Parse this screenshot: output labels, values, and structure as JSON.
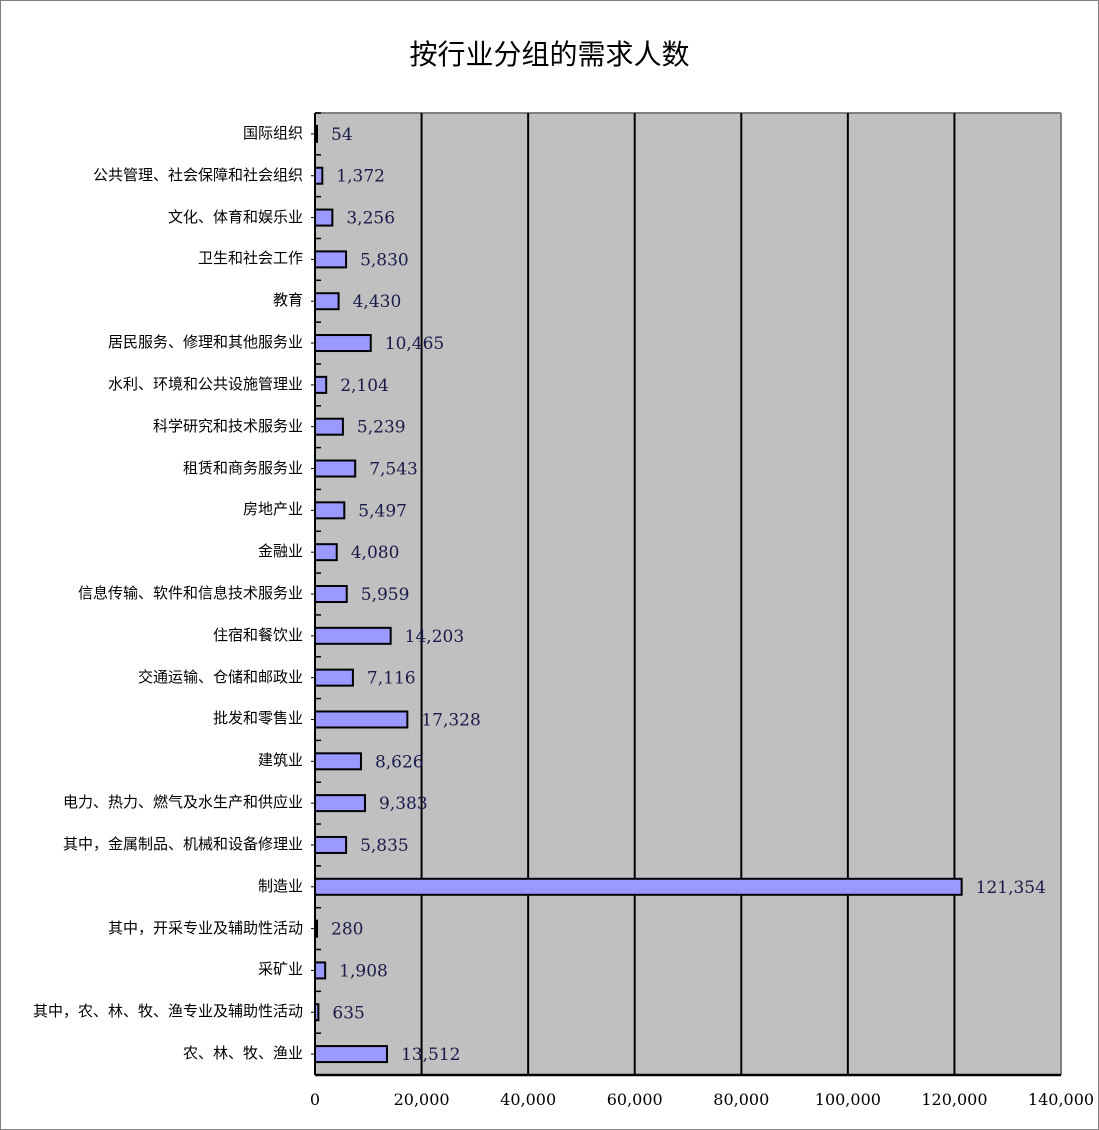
{
  "chart_data": {
    "type": "bar",
    "orientation": "horizontal",
    "title": "按行业分组的需求人数",
    "categories": [
      "国际组织",
      "公共管理、社会保障和社会组织",
      "文化、体育和娱乐业",
      "卫生和社会工作",
      "教育",
      "居民服务、修理和其他服务业",
      "水利、环境和公共设施管理业",
      "科学研究和技术服务业",
      "租赁和商务服务业",
      "房地产业",
      "金融业",
      "信息传输、软件和信息技术服务业",
      "住宿和餐饮业",
      "交通运输、仓储和邮政业",
      "批发和零售业",
      "建筑业",
      "电力、热力、燃气及水生产和供应业",
      "其中，金属制品、机械和设备修理业",
      "制造业",
      "其中，开采专业及辅助性活动",
      "采矿业",
      "其中，农、林、牧、渔专业及辅助性活动",
      "农、林、牧、渔业"
    ],
    "values": [
      54,
      1372,
      3256,
      5830,
      4430,
      10465,
      2104,
      5239,
      7543,
      5497,
      4080,
      5959,
      14203,
      7116,
      17328,
      8626,
      9383,
      5835,
      121354,
      280,
      1908,
      635,
      13512
    ],
    "data_labels": [
      "54",
      "1,372",
      "3,256",
      "5,830",
      "4,430",
      "10,465",
      "2,104",
      "5,239",
      "7,543",
      "5,497",
      "4,080",
      "5,959",
      "14,203",
      "7,116",
      "17,328",
      "8,626",
      "9,383",
      "5,835",
      "121,354",
      "280",
      "1,908",
      "635",
      "13,512"
    ],
    "xlim": [
      0,
      140000
    ],
    "x_ticks": [
      "0",
      "20,000",
      "40,000",
      "60,000",
      "80,000",
      "100,000",
      "120,000",
      "140,000"
    ],
    "tick_values": [
      0,
      20000,
      40000,
      60000,
      80000,
      100000,
      120000,
      140000
    ],
    "grid": "vertical",
    "legend": "none",
    "colors": {
      "bar_fill": "#9999ff",
      "bar_stroke": "#000000",
      "plot_bg": "#c0c0c0",
      "label_text": "#1a1a4a"
    }
  }
}
